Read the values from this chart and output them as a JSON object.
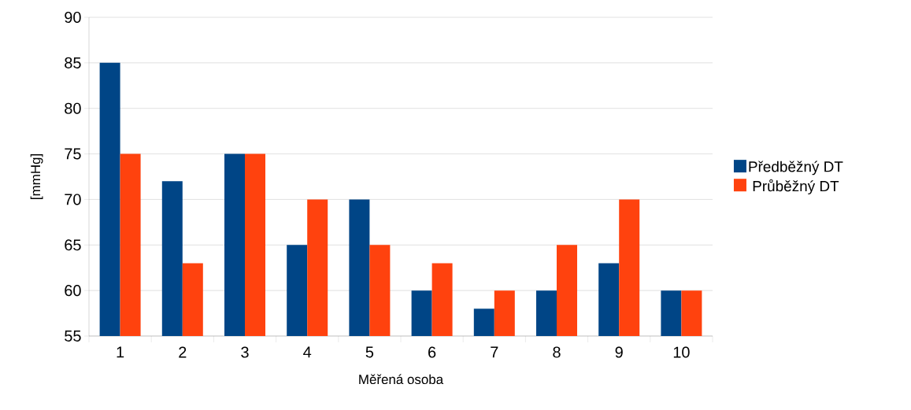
{
  "chart_data": {
    "type": "bar",
    "xlabel": "Měřená osoba",
    "ylabel": "[mmHg]",
    "categories": [
      "1",
      "2",
      "3",
      "4",
      "5",
      "6",
      "7",
      "8",
      "9",
      "10"
    ],
    "series": [
      {
        "name": "Předběžný DT",
        "color": "#004586",
        "values": [
          85,
          72,
          75,
          65,
          70,
          60,
          58,
          60,
          63,
          60
        ]
      },
      {
        "name": "Průběžný DT",
        "color": "#ff420e",
        "values": [
          75,
          63,
          75,
          70,
          65,
          63,
          60,
          65,
          70,
          60
        ]
      }
    ],
    "ylim": [
      55,
      90
    ],
    "yticks": [
      55,
      60,
      65,
      70,
      75,
      80,
      85,
      90
    ],
    "grid": "y",
    "legend": "right"
  }
}
